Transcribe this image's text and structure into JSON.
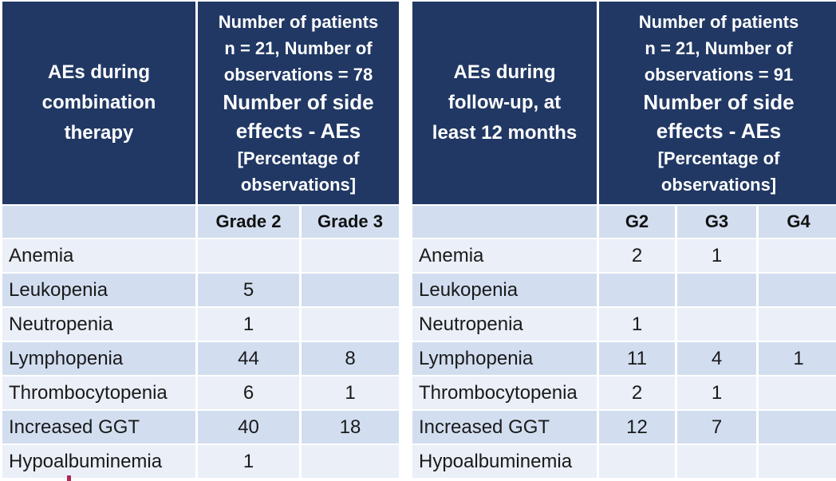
{
  "colors": {
    "header_bg": "#213864",
    "header_text": "#ffffff",
    "band_dark": "#d2def0",
    "band_light": "#eaeff8",
    "body_text": "#1a1a1a",
    "gridline": "#ffffff",
    "artifact_red": "#aa2b56"
  },
  "chart_data": [
    {
      "type": "table",
      "title": "AEs during combination therapy",
      "subtitle": "Number of patients n = 21, Number of observations = 78",
      "note": "Number of side effects - AEs [Percentage of observations]",
      "header": {
        "title_lines": [
          "AEs during",
          "combination",
          "therapy"
        ],
        "stats_small_lines": [
          "Number of patients",
          "n = 21, Number of",
          "observations = 78"
        ],
        "stats_large_lines": [
          "Number of side",
          "effects - AEs"
        ],
        "stats_bracket_lines": [
          "[Percentage of",
          "observations]"
        ]
      },
      "columns": [
        "Grade 2",
        "Grade 3"
      ],
      "rows": [
        {
          "label": "Anemia",
          "values": [
            "",
            ""
          ]
        },
        {
          "label": "Leukopenia",
          "values": [
            "5",
            ""
          ]
        },
        {
          "label": "Neutropenia",
          "values": [
            "1",
            ""
          ]
        },
        {
          "label": "Lymphopenia",
          "values": [
            "44",
            "8"
          ]
        },
        {
          "label": "Thrombocytopenia",
          "values": [
            "6",
            "1"
          ]
        },
        {
          "label": "Increased GGT",
          "values": [
            "40",
            "18"
          ]
        },
        {
          "label": "Hypoalbuminemia",
          "values": [
            "1",
            ""
          ]
        }
      ]
    },
    {
      "type": "table",
      "title": "AEs during follow-up, at least 12 months",
      "subtitle": "Number of patients n = 21, Number of observations = 91",
      "note": "Number of side effects - AEs [Percentage of observations]",
      "header": {
        "title_lines": [
          "AEs during",
          "follow-up, at",
          "least 12 months"
        ],
        "stats_small_lines": [
          "Number of patients",
          "n = 21, Number of",
          "observations = 91"
        ],
        "stats_large_lines": [
          "Number of side",
          "effects - AEs"
        ],
        "stats_bracket_lines": [
          "[Percentage of",
          "observations]"
        ]
      },
      "columns": [
        "G2",
        "G3",
        "G4"
      ],
      "rows": [
        {
          "label": "Anemia",
          "values": [
            "2",
            "1",
            ""
          ]
        },
        {
          "label": "Leukopenia",
          "values": [
            "",
            "",
            ""
          ]
        },
        {
          "label": "Neutropenia",
          "values": [
            "1",
            "",
            ""
          ]
        },
        {
          "label": "Lymphopenia",
          "values": [
            "11",
            "4",
            "1"
          ]
        },
        {
          "label": "Thrombocytopenia",
          "values": [
            "2",
            "1",
            ""
          ]
        },
        {
          "label": "Increased GGT",
          "values": [
            "12",
            "7",
            ""
          ]
        },
        {
          "label": "Hypoalbuminemia",
          "values": [
            "",
            "",
            ""
          ]
        }
      ]
    }
  ]
}
